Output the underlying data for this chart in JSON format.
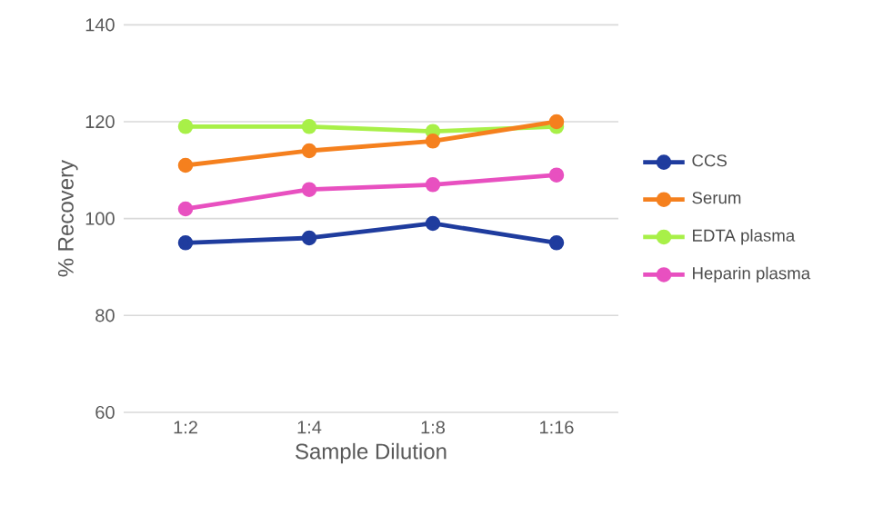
{
  "chart_data": {
    "type": "line",
    "xlabel": "Sample Dilution",
    "ylabel": "% Recovery",
    "categories": [
      "1:2",
      "1:4",
      "1:8",
      "1:16"
    ],
    "series": [
      {
        "name": "CCS",
        "color": "#1f3c9e",
        "values": [
          95,
          96,
          99,
          95
        ]
      },
      {
        "name": "Serum",
        "color": "#f5801e",
        "values": [
          111,
          114,
          116,
          120
        ]
      },
      {
        "name": "EDTA plasma",
        "color": "#a8f048",
        "values": [
          119,
          119,
          118,
          119
        ]
      },
      {
        "name": "Heparin plasma",
        "color": "#e850c0",
        "values": [
          102,
          106,
          107,
          109
        ]
      }
    ],
    "ylim": [
      60,
      140
    ],
    "yticks": [
      60,
      80,
      100,
      120,
      140
    ],
    "grid": "y",
    "legend": "right",
    "marker": "circle",
    "line_style": "solid"
  }
}
